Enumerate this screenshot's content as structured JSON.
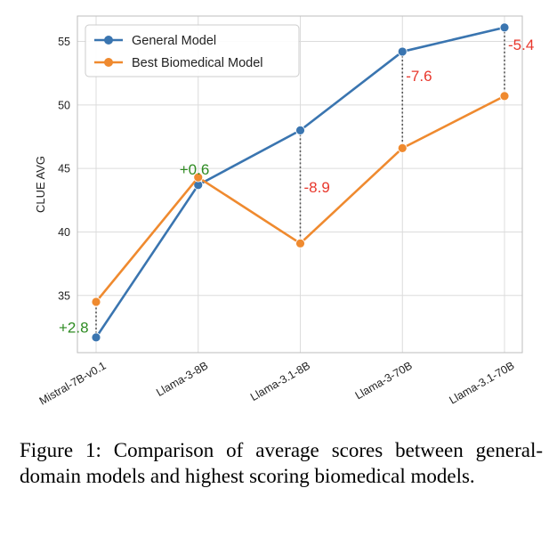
{
  "chart_data": {
    "type": "line",
    "categories": [
      "Mistral-7B-v0.1",
      "Llama-3-8B",
      "Llama-3.1-8B",
      "Llama-3-70B",
      "Llama-3.1-70B"
    ],
    "series": [
      {
        "name": "General Model",
        "color": "#3a75b0",
        "values": [
          31.7,
          43.7,
          48.0,
          54.2,
          56.1
        ]
      },
      {
        "name": "Best Biomedical Model",
        "color": "#ef8a2f",
        "values": [
          34.5,
          44.3,
          39.1,
          46.6,
          50.7
        ]
      }
    ],
    "differences": [
      "+2.8",
      "+0.6",
      "-8.9",
      "-7.6",
      "-5.4"
    ],
    "difference_colors": {
      "positive": "#2e8b22",
      "negative": "#e8372c"
    },
    "xlabel": "",
    "ylabel": "CLUE AVG",
    "ylim": [
      30.5,
      57
    ],
    "yticks": [
      35,
      40,
      45,
      50,
      55
    ],
    "grid": true,
    "legend_position": "top-left"
  },
  "caption": "Figure 1:  Comparison of average scores between general-domain models and highest scoring biomedical models."
}
